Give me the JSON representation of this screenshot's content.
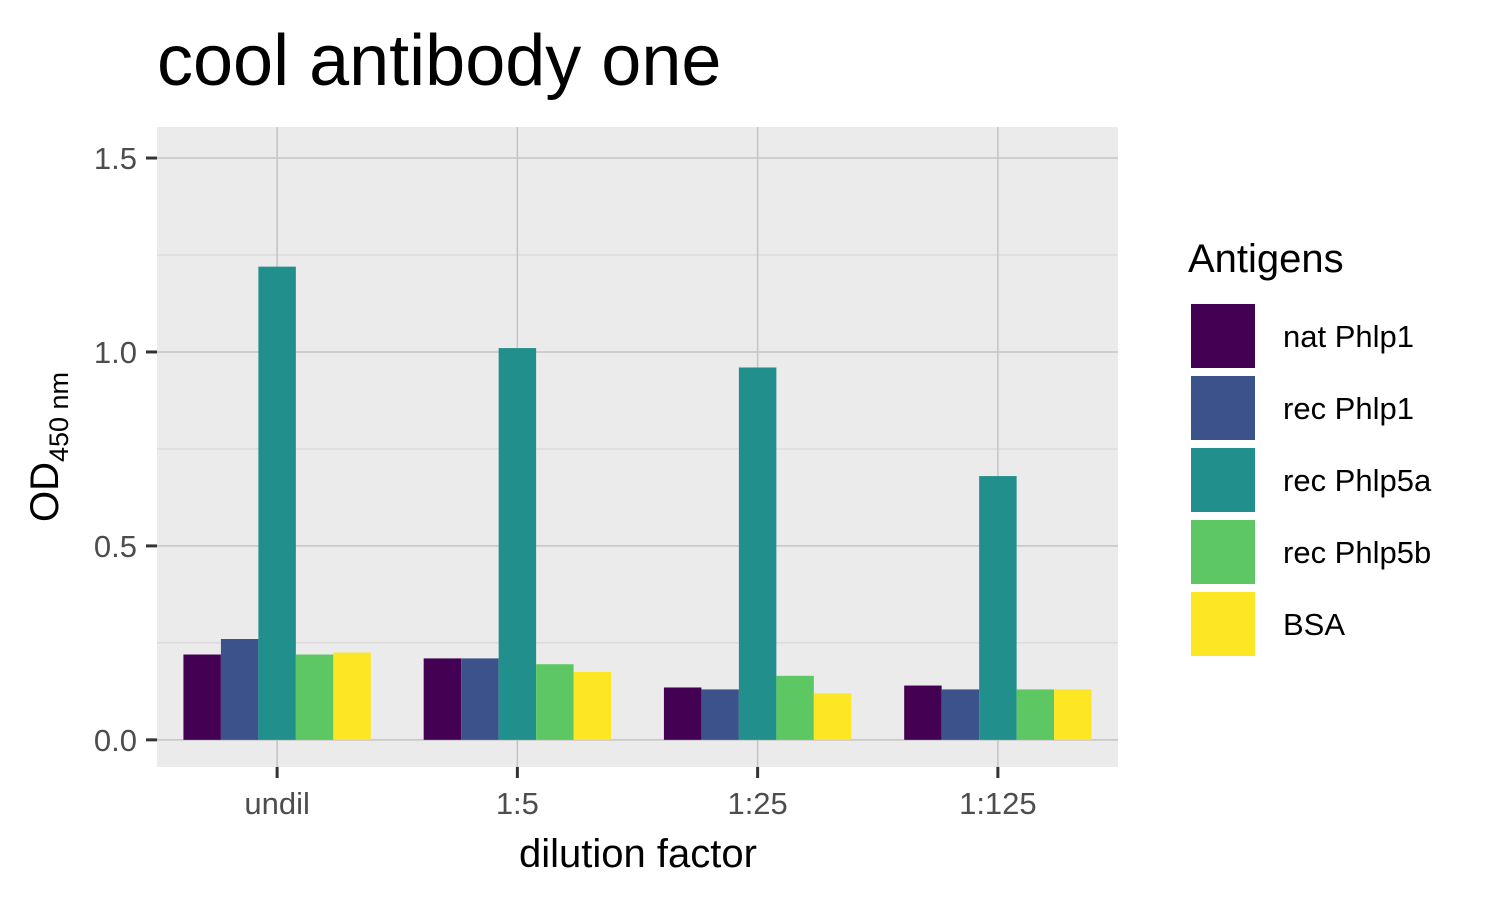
{
  "chart_data": {
    "type": "bar",
    "title": "cool antibody one",
    "xlabel": "dilution factor",
    "ylabel": {
      "main": "OD",
      "subscript": "450 nm"
    },
    "categories": [
      "undil",
      "1:5",
      "1:25",
      "1:125"
    ],
    "ylim": [
      -0.07,
      1.58
    ],
    "yticks": [
      0.0,
      0.5,
      1.0,
      1.5
    ],
    "ytick_labels": [
      "0.0",
      "0.5",
      "1.0",
      "1.5"
    ],
    "grid": true,
    "legend": {
      "title": "Antigens",
      "position": "right"
    },
    "series": [
      {
        "name": "nat Phlp1",
        "color": "#440154",
        "values": [
          0.22,
          0.21,
          0.135,
          0.14
        ]
      },
      {
        "name": "rec Phlp1",
        "color": "#3B528B",
        "values": [
          0.26,
          0.21,
          0.13,
          0.13
        ]
      },
      {
        "name": "rec Phlp5a",
        "color": "#21908C",
        "values": [
          1.22,
          1.01,
          0.96,
          0.68
        ]
      },
      {
        "name": "rec Phlp5b",
        "color": "#5DC863",
        "values": [
          0.22,
          0.195,
          0.165,
          0.13
        ]
      },
      {
        "name": "BSA",
        "color": "#FDE725",
        "values": [
          0.225,
          0.175,
          0.12,
          0.13
        ]
      }
    ]
  }
}
